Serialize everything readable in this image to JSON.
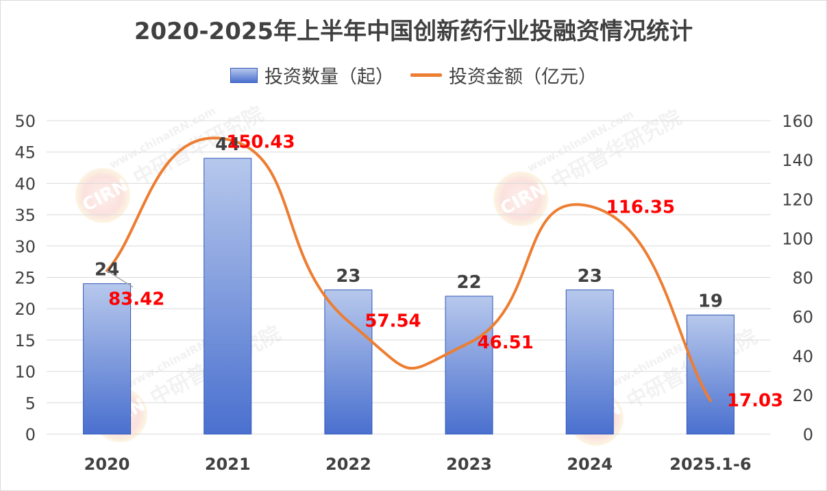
{
  "title": "2020-2025年上半年中国创新药行业投融资情况统计",
  "legend": {
    "bar_label": "投资数量（起）",
    "line_label": "投资金额（亿元）"
  },
  "watermark": {
    "logo": "CIRN",
    "text": "中研普华研究院",
    "url": "www.chinaIRN.com"
  },
  "colors": {
    "bar_top": "#b7c8ec",
    "bar_bottom": "#4a70cf",
    "bar_border": "#2f55b8",
    "line": "#ed7d31",
    "line_label": "#ff0000",
    "gridline": "#d9d9d9",
    "text": "#404040"
  },
  "chart_data": {
    "type": "bar+line",
    "categories": [
      "2020",
      "2021",
      "2022",
      "2023",
      "2024",
      "2025.1-6"
    ],
    "series": [
      {
        "name": "投资数量（起）",
        "type": "bar",
        "axis": "left",
        "values": [
          24,
          44,
          23,
          22,
          23,
          19
        ],
        "labels": [
          "24",
          "44",
          "23",
          "22",
          "23",
          "19"
        ]
      },
      {
        "name": "投资金额（亿元）",
        "type": "line",
        "axis": "right",
        "smooth": true,
        "values": [
          83.42,
          150.43,
          57.54,
          46.51,
          116.35,
          17.03
        ],
        "labels": [
          "83.42",
          "150.43",
          "57.54",
          "46.51",
          "116.35",
          "17.03"
        ]
      }
    ],
    "y_left": {
      "min": 0,
      "max": 50,
      "step": 5,
      "ticks": [
        "0",
        "5",
        "10",
        "15",
        "20",
        "25",
        "30",
        "35",
        "40",
        "45",
        "50"
      ]
    },
    "y_right": {
      "min": 0,
      "max": 160,
      "step": 20,
      "ticks": [
        "0",
        "20",
        "40",
        "60",
        "80",
        "100",
        "120",
        "140",
        "160"
      ]
    },
    "grid": true,
    "legend_position": "top"
  }
}
